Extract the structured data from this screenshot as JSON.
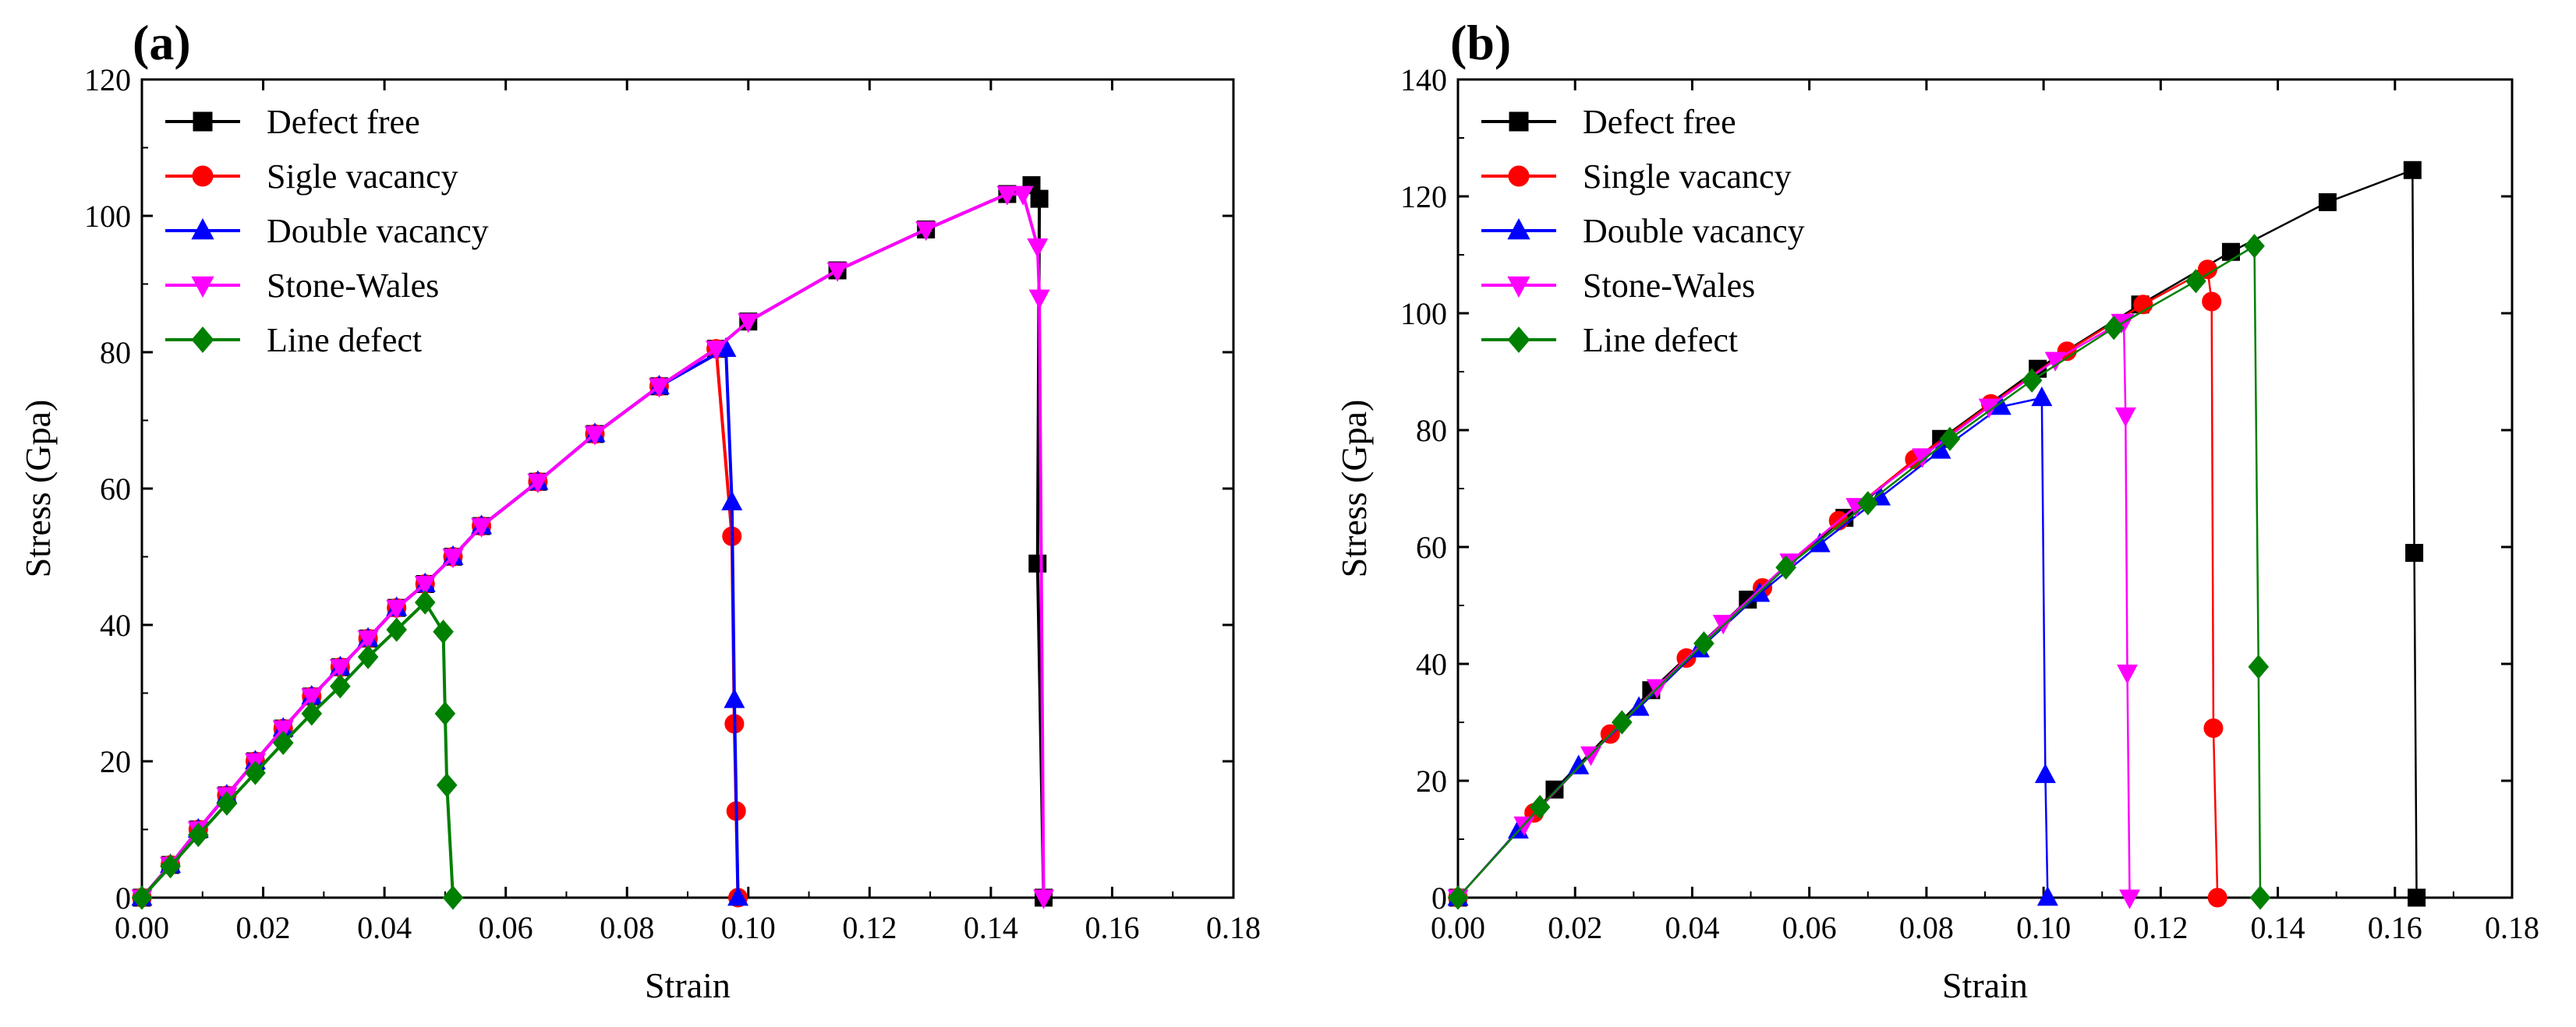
{
  "chart_data": [
    {
      "type": "line",
      "panel_label": "(a)",
      "xlabel": "Strain",
      "ylabel": "Stress (Gpa)",
      "xlim": [
        0,
        0.18
      ],
      "ylim": [
        0,
        120
      ],
      "xticks": [
        0.0,
        0.02,
        0.04,
        0.06,
        0.08,
        0.1,
        0.12,
        0.14,
        0.16,
        0.18
      ],
      "xtick_labels": [
        "0.00",
        "0.02",
        "0.04",
        "0.06",
        "0.08",
        "0.10",
        "0.12",
        "0.14",
        "0.16",
        "0.18"
      ],
      "yticks": [
        0,
        20,
        40,
        60,
        80,
        100,
        120
      ],
      "ytick_labels": [
        "0",
        "20",
        "40",
        "60",
        "80",
        "100",
        "120"
      ],
      "grid": false,
      "legend_position": "top-left",
      "series": [
        {
          "name": "Defect free",
          "color": "#000000",
          "marker": "square",
          "x": [
            0,
            0.0047,
            0.0093,
            0.014,
            0.0187,
            0.0233,
            0.028,
            0.0327,
            0.0373,
            0.042,
            0.0467,
            0.0513,
            0.056,
            0.0653,
            0.0747,
            0.0853,
            0.0947,
            0.1,
            0.1147,
            0.1293,
            0.1427,
            0.1467,
            0.148,
            0.1477,
            0.1487
          ],
          "y": [
            0,
            4.8,
            10,
            15,
            20,
            24.8,
            29.5,
            33.8,
            38,
            42.5,
            46,
            50,
            54.5,
            61,
            68,
            75,
            80.5,
            84.5,
            92,
            98,
            103.2,
            104.5,
            102.5,
            49,
            0
          ]
        },
        {
          "name": "Sigle vacancy",
          "color": "#ff0000",
          "marker": "circle",
          "x": [
            0,
            0.0047,
            0.0093,
            0.014,
            0.0187,
            0.0233,
            0.028,
            0.0327,
            0.0373,
            0.042,
            0.0467,
            0.0513,
            0.056,
            0.0653,
            0.0747,
            0.0853,
            0.0947,
            0.0973,
            0.0977,
            0.098,
            0.0983
          ],
          "y": [
            0,
            4.8,
            10,
            15,
            20,
            24.8,
            29.5,
            33.8,
            38,
            42.5,
            46,
            50,
            54.5,
            61,
            68,
            75,
            80.5,
            53,
            25.5,
            12.7,
            0
          ]
        },
        {
          "name": "Double vacancy",
          "color": "#0000ff",
          "marker": "triangle-up",
          "x": [
            0,
            0.0047,
            0.0093,
            0.014,
            0.0187,
            0.0233,
            0.028,
            0.0327,
            0.0373,
            0.042,
            0.0467,
            0.0513,
            0.056,
            0.0653,
            0.0747,
            0.0853,
            0.0963,
            0.0973,
            0.0977,
            0.0983
          ],
          "y": [
            0,
            4.8,
            10,
            15,
            20,
            24.8,
            29.5,
            33.8,
            38,
            42.5,
            46,
            50,
            54.5,
            61,
            68,
            75,
            80.5,
            58,
            29,
            0
          ]
        },
        {
          "name": "Stone-Wales",
          "color": "#ff00ff",
          "marker": "triangle-down",
          "x": [
            0,
            0.0047,
            0.0093,
            0.014,
            0.0187,
            0.0233,
            0.028,
            0.0327,
            0.0373,
            0.042,
            0.0467,
            0.0513,
            0.056,
            0.0653,
            0.0747,
            0.0853,
            0.0947,
            0.1,
            0.1147,
            0.1293,
            0.1427,
            0.1453,
            0.1477,
            0.148,
            0.1487
          ],
          "y": [
            0,
            4.8,
            10,
            15,
            20,
            24.8,
            29.5,
            33.8,
            38,
            42.5,
            46,
            50,
            54.5,
            61,
            68,
            75,
            80.5,
            84.5,
            92,
            98,
            103.2,
            103.2,
            95.5,
            88,
            0
          ]
        },
        {
          "name": "Line defect",
          "color": "#008000",
          "marker": "diamond",
          "x": [
            0,
            0.0047,
            0.0093,
            0.014,
            0.0187,
            0.0233,
            0.028,
            0.0327,
            0.0373,
            0.042,
            0.0467,
            0.0497,
            0.05,
            0.0503,
            0.0513
          ],
          "y": [
            0,
            4.6,
            9.2,
            13.8,
            18.3,
            22.7,
            27,
            31,
            35.3,
            39.3,
            43.3,
            39,
            27,
            16.5,
            0
          ]
        }
      ]
    },
    {
      "type": "line",
      "panel_label": "(b)",
      "xlabel": "Strain",
      "ylabel": "Stress (Gpa)",
      "xlim": [
        0,
        0.18
      ],
      "ylim": [
        0,
        140
      ],
      "xticks": [
        0.0,
        0.02,
        0.04,
        0.06,
        0.08,
        0.1,
        0.12,
        0.14,
        0.16,
        0.18
      ],
      "xtick_labels": [
        "0.00",
        "0.02",
        "0.04",
        "0.06",
        "0.08",
        "0.10",
        "0.12",
        "0.14",
        "0.16",
        "0.18"
      ],
      "yticks": [
        0,
        20,
        40,
        60,
        80,
        100,
        120,
        140
      ],
      "ytick_labels": [
        "0",
        "20",
        "40",
        "60",
        "80",
        "100",
        "120",
        "140"
      ],
      "grid": false,
      "legend_position": "top-left",
      "series": [
        {
          "name": "Defect free",
          "color": "#000000",
          "marker": "square",
          "x": [
            0,
            0.0165,
            0.033,
            0.0495,
            0.066,
            0.0825,
            0.099,
            0.1165,
            0.132,
            0.1485,
            0.163,
            0.1633,
            0.1637
          ],
          "y": [
            0,
            18.5,
            35.5,
            51,
            65,
            78.5,
            90.5,
            101.5,
            110.5,
            119,
            124.5,
            59,
            0
          ]
        },
        {
          "name": "Single vacancy",
          "color": "#ff0000",
          "marker": "circle",
          "x": [
            0,
            0.013,
            0.026,
            0.039,
            0.052,
            0.065,
            0.078,
            0.091,
            0.104,
            0.117,
            0.128,
            0.1287,
            0.129,
            0.1297
          ],
          "y": [
            0,
            14.5,
            28,
            41,
            53,
            64.5,
            75,
            84.5,
            93.5,
            101.5,
            107.5,
            102,
            29,
            0
          ]
        },
        {
          "name": "Double vacancy",
          "color": "#0000ff",
          "marker": "triangle-up",
          "x": [
            0,
            0.0103,
            0.0206,
            0.0309,
            0.0412,
            0.0515,
            0.0618,
            0.0721,
            0.0824,
            0.0927,
            0.0997,
            0.1003,
            0.1007
          ],
          "y": [
            0,
            11.5,
            22.5,
            32.5,
            42.5,
            52,
            60.5,
            68.5,
            76.5,
            84,
            85.5,
            21,
            0
          ]
        },
        {
          "name": "Stone-Wales",
          "color": "#ff00ff",
          "marker": "triangle-down",
          "x": [
            0,
            0.0113,
            0.0227,
            0.034,
            0.0453,
            0.0567,
            0.068,
            0.0793,
            0.0907,
            0.102,
            0.1133,
            0.1137,
            0.114,
            0.1143,
            0.1147
          ],
          "y": [
            0,
            12.5,
            24.5,
            36,
            47,
            57.5,
            67,
            75.5,
            84,
            92,
            98.5,
            98.5,
            82.5,
            38.5,
            0
          ]
        },
        {
          "name": "Line defect",
          "color": "#008000",
          "marker": "diamond",
          "x": [
            0,
            0.014,
            0.028,
            0.042,
            0.056,
            0.07,
            0.084,
            0.098,
            0.112,
            0.126,
            0.136,
            0.1367,
            0.137
          ],
          "y": [
            0,
            15.5,
            30,
            43.5,
            56.5,
            67.5,
            78.5,
            88.5,
            97.5,
            105.5,
            111.5,
            39.5,
            0
          ]
        }
      ]
    }
  ]
}
